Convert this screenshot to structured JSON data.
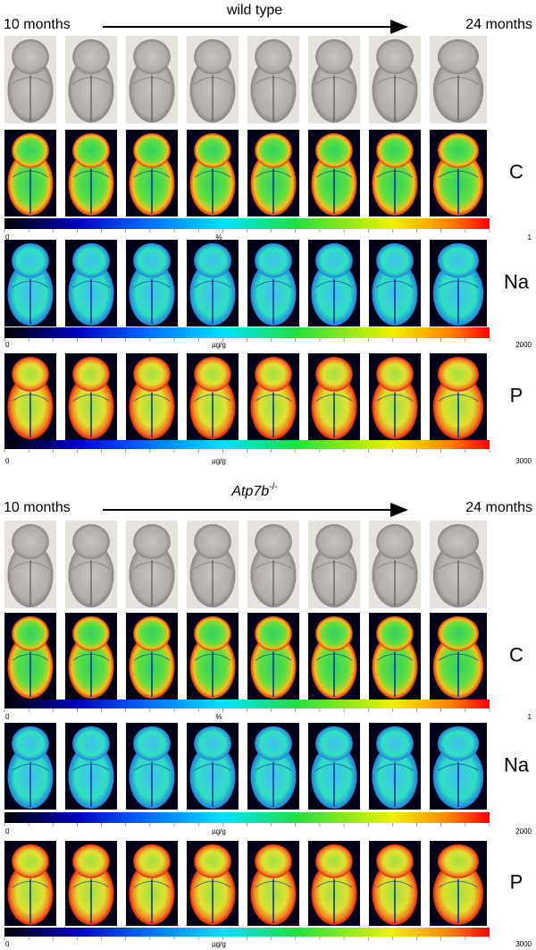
{
  "panels": [
    {
      "title": "wild type",
      "start_label": "10 months",
      "end_label": "24 months",
      "rows": [
        {
          "element": "C",
          "scale_min": "0",
          "scale_unit": "%",
          "scale_max": "1"
        },
        {
          "element": "Na",
          "scale_min": "0",
          "scale_unit": "µg/g",
          "scale_max": "2000"
        },
        {
          "element": "P",
          "scale_min": "0",
          "scale_unit": "µg/g",
          "scale_max": "3000"
        }
      ]
    },
    {
      "title": "Atp7b",
      "title_superscript": "-/-",
      "start_label": "10 months",
      "end_label": "24 months",
      "rows": [
        {
          "element": "C",
          "scale_min": "0",
          "scale_unit": "%",
          "scale_max": "1"
        },
        {
          "element": "Na",
          "scale_min": "0",
          "scale_unit": "µg/g",
          "scale_max": "2000"
        },
        {
          "element": "P",
          "scale_min": "0",
          "scale_unit": "µg/g",
          "scale_max": "3000"
        }
      ]
    }
  ]
}
